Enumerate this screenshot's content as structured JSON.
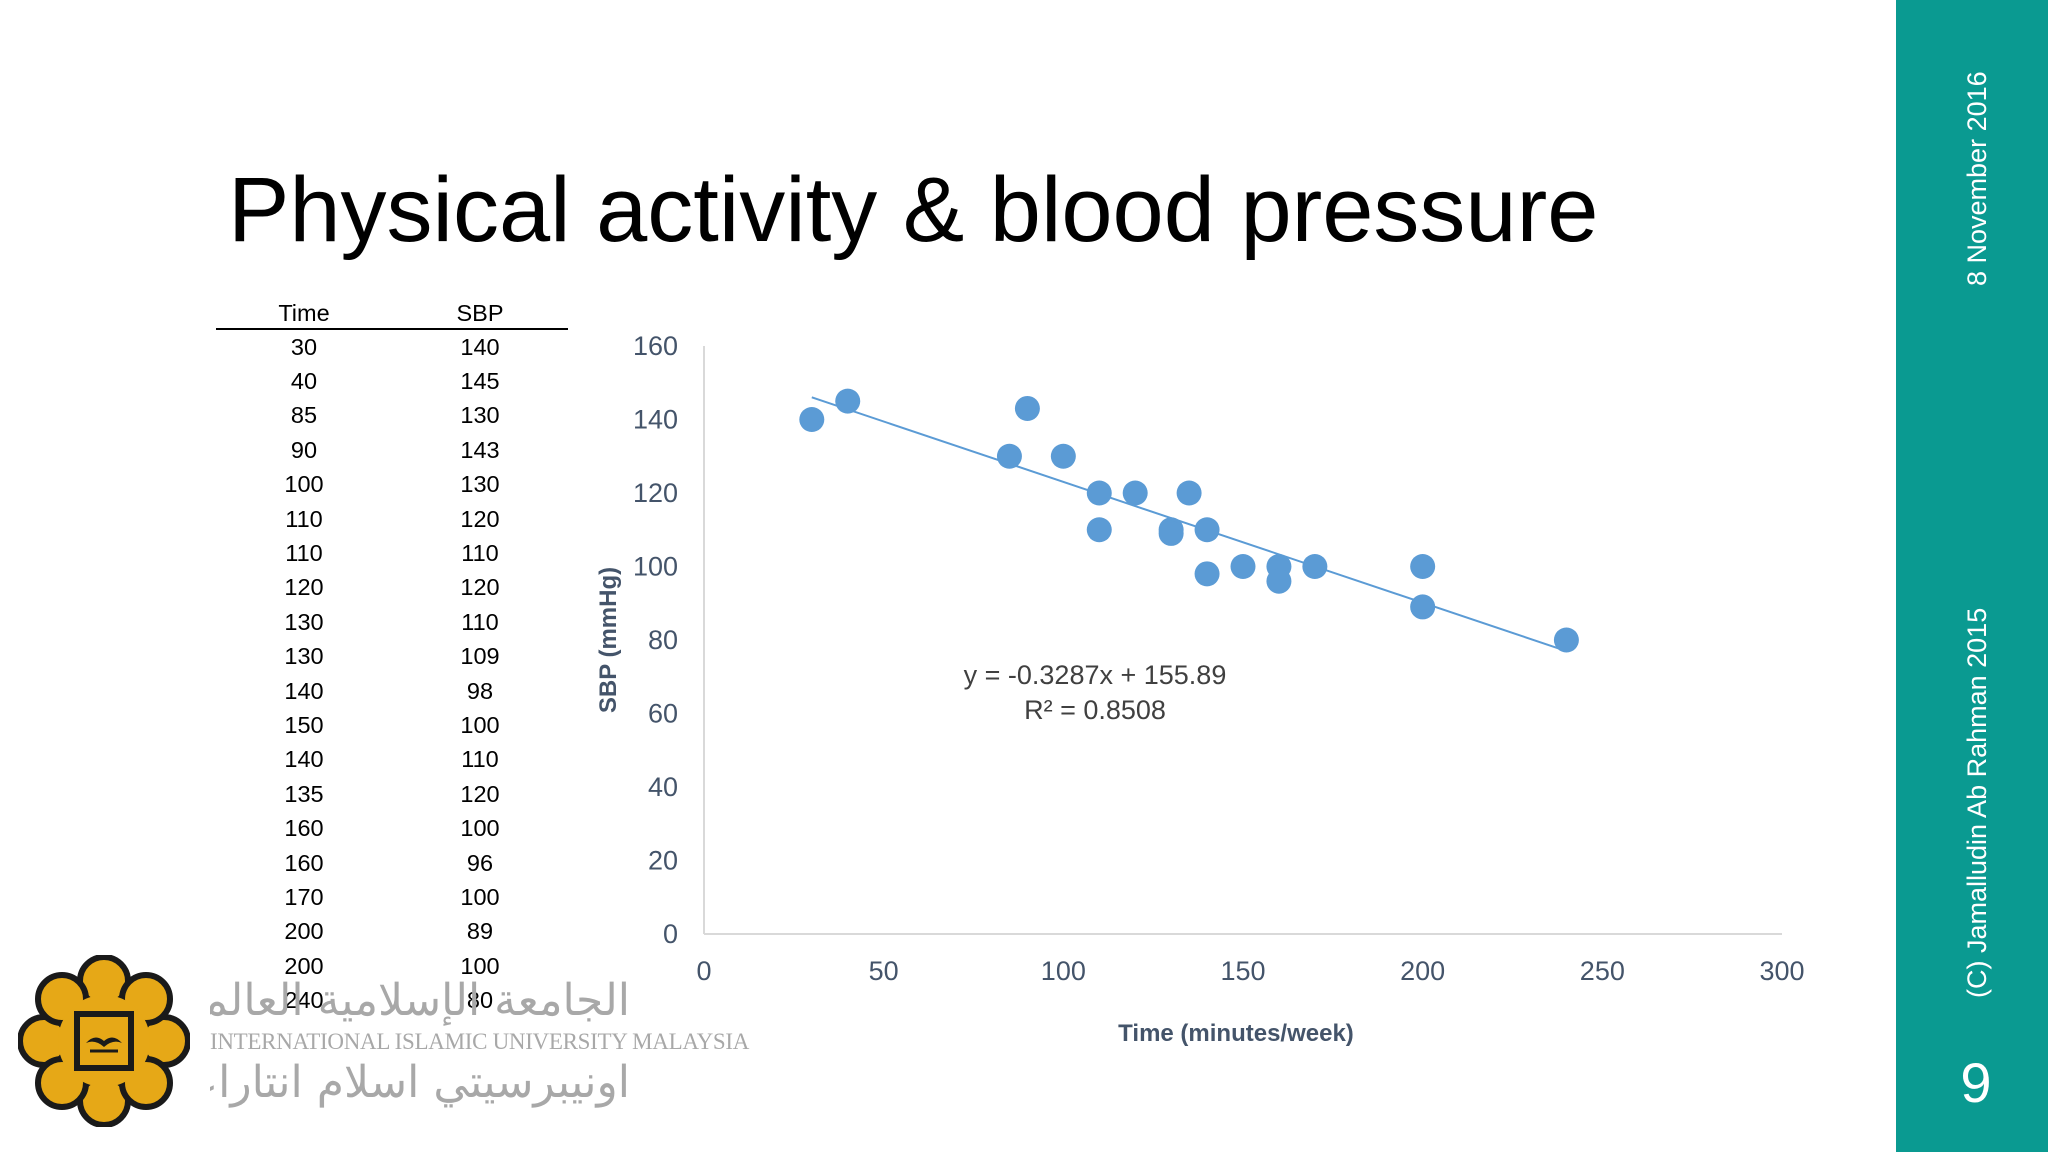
{
  "slide": {
    "title": "Physical activity & blood pressure",
    "date": "8 November 2016",
    "copyright": "(C) Jamalludin Ab Rahman 2015",
    "number": "9"
  },
  "colors": {
    "band": "#0a9a91",
    "point": "#5b9bd5",
    "axis_text": "#44546a"
  },
  "table": {
    "headers": [
      "Time",
      "SBP"
    ],
    "rows": [
      [
        "30",
        "140"
      ],
      [
        "40",
        "145"
      ],
      [
        "85",
        "130"
      ],
      [
        "90",
        "143"
      ],
      [
        "100",
        "130"
      ],
      [
        "110",
        "120"
      ],
      [
        "110",
        "110"
      ],
      [
        "120",
        "120"
      ],
      [
        "130",
        "110"
      ],
      [
        "130",
        "109"
      ],
      [
        "140",
        "98"
      ],
      [
        "150",
        "100"
      ],
      [
        "140",
        "110"
      ],
      [
        "135",
        "120"
      ],
      [
        "160",
        "100"
      ],
      [
        "160",
        "96"
      ],
      [
        "170",
        "100"
      ],
      [
        "200",
        "89"
      ],
      [
        "200",
        "100"
      ],
      [
        "240",
        "80"
      ]
    ]
  },
  "logo": {
    "arabic": "الجامعة الإسلامية العالمية ماليزيا",
    "english": "INTERNATIONAL ISLAMIC UNIVERSITY MALAYSIA",
    "malay_jawi": "اونيبرسيتي اسلام انتاراڠسا مليسيا",
    "icon": "iium-emblem-icon"
  },
  "chart_data": {
    "type": "scatter",
    "xlabel": "Time (minutes/week)",
    "ylabel": "SBP (mmHg)",
    "xlim": [
      0,
      300
    ],
    "ylim": [
      0,
      160
    ],
    "xticks": [
      0,
      50,
      100,
      150,
      200,
      250,
      300
    ],
    "yticks": [
      0,
      20,
      40,
      60,
      80,
      100,
      120,
      140,
      160
    ],
    "grid": false,
    "points": [
      [
        30,
        140
      ],
      [
        40,
        145
      ],
      [
        85,
        130
      ],
      [
        90,
        143
      ],
      [
        100,
        130
      ],
      [
        110,
        120
      ],
      [
        110,
        110
      ],
      [
        120,
        120
      ],
      [
        130,
        110
      ],
      [
        130,
        109
      ],
      [
        140,
        98
      ],
      [
        150,
        100
      ],
      [
        140,
        110
      ],
      [
        135,
        120
      ],
      [
        160,
        100
      ],
      [
        160,
        96
      ],
      [
        170,
        100
      ],
      [
        200,
        89
      ],
      [
        200,
        100
      ],
      [
        240,
        80
      ]
    ],
    "trendline": {
      "slope": -0.3287,
      "intercept": 155.89,
      "x_range": [
        30,
        240
      ]
    },
    "annotation": {
      "equation": "y = -0.3287x + 155.89",
      "r2": "R² = 0.8508"
    }
  }
}
